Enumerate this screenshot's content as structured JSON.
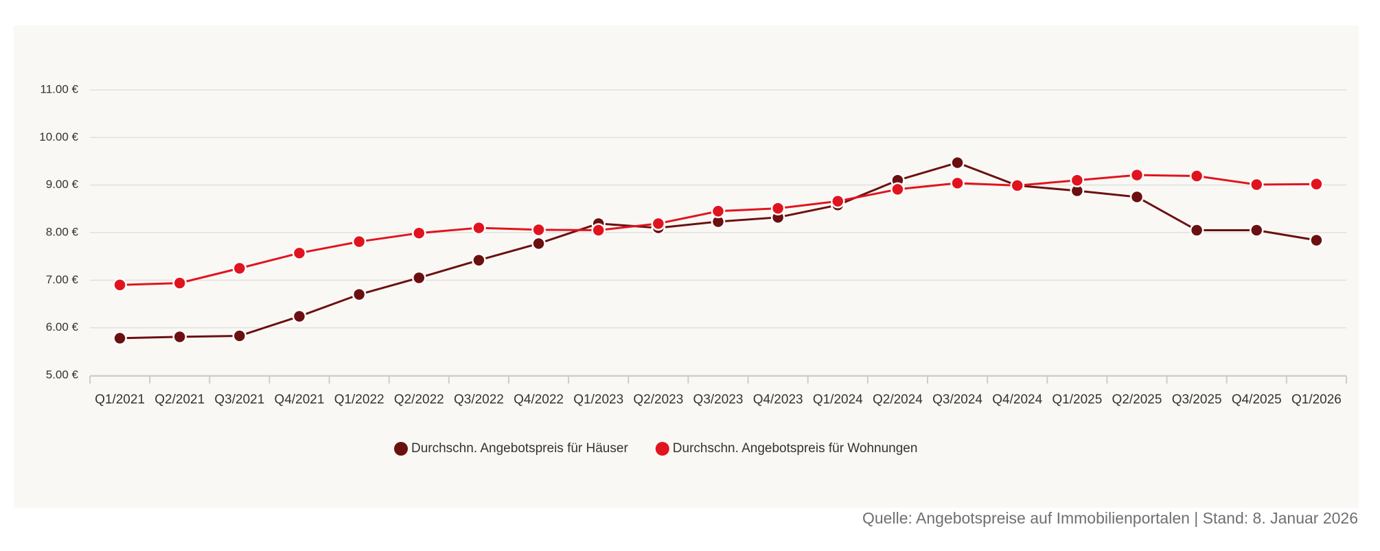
{
  "chart_data": {
    "type": "line",
    "categories": [
      "Q1/2021",
      "Q2/2021",
      "Q3/2021",
      "Q4/2021",
      "Q1/2022",
      "Q2/2022",
      "Q3/2022",
      "Q4/2022",
      "Q1/2023",
      "Q2/2023",
      "Q3/2023",
      "Q4/2023",
      "Q1/2024",
      "Q2/2024",
      "Q3/2024",
      "Q4/2024",
      "Q1/2025",
      "Q2/2025",
      "Q3/2025",
      "Q4/2025",
      "Q1/2026"
    ],
    "series": [
      {
        "name": "Durchschn. Angebotspreis für Häuser",
        "color": "#6b1010",
        "values": [
          5.78,
          5.81,
          5.83,
          6.24,
          6.7,
          7.05,
          7.42,
          7.77,
          8.19,
          8.1,
          8.23,
          8.32,
          8.58,
          9.1,
          9.47,
          8.99,
          8.88,
          8.75,
          8.05,
          8.05,
          7.84
        ]
      },
      {
        "name": "Durchschn. Angebotspreis für Wohnungen",
        "color": "#e0141e",
        "values": [
          6.9,
          6.94,
          7.25,
          7.57,
          7.81,
          7.99,
          8.1,
          8.06,
          8.05,
          8.19,
          8.45,
          8.51,
          8.66,
          8.91,
          9.04,
          8.99,
          9.1,
          9.21,
          9.19,
          9.01,
          9.02
        ]
      }
    ],
    "ylim": [
      5,
      11
    ],
    "yticks": [
      {
        "value": 5,
        "label": "5.00 €"
      },
      {
        "value": 6,
        "label": "6.00 €"
      },
      {
        "value": 7,
        "label": "7.00 €"
      },
      {
        "value": 8,
        "label": "8.00 €"
      },
      {
        "value": 9,
        "label": "9.00 €"
      },
      {
        "value": 10,
        "label": "10.00 €"
      },
      {
        "value": 11,
        "label": "11.00 €"
      }
    ],
    "grid": true,
    "legend": "bottom",
    "source": "Quelle: Angebotspreise auf Immobilienportalen | Stand: 8. Januar 2026"
  }
}
